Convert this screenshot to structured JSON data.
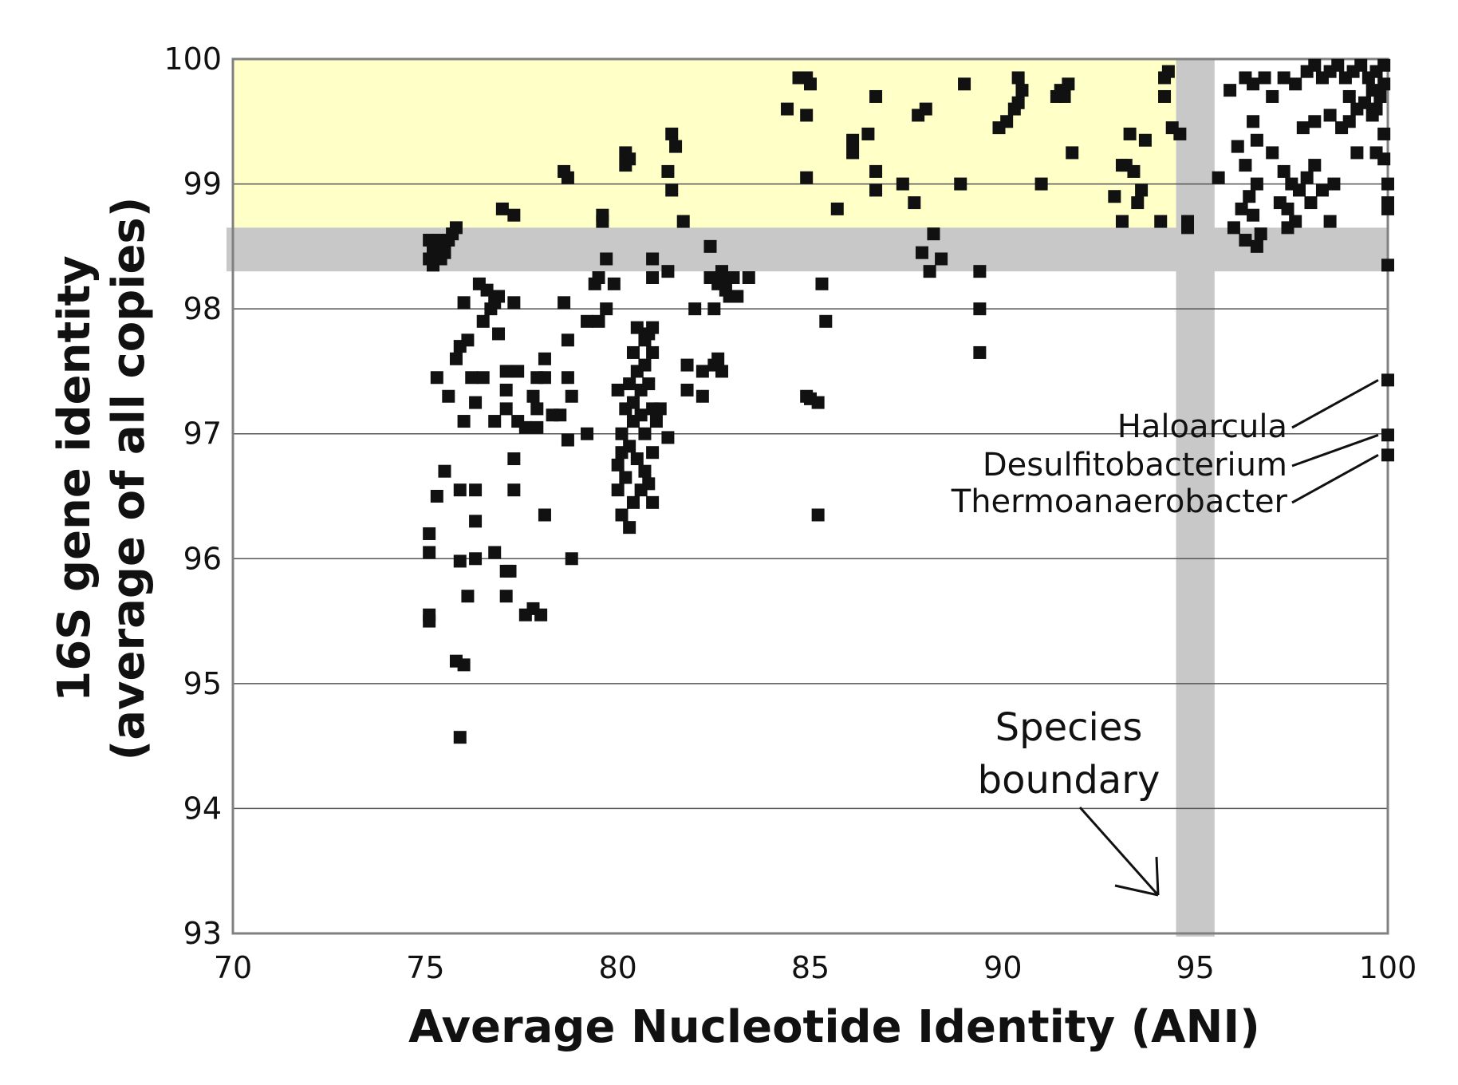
{
  "chart_data": {
    "type": "scatter",
    "xlabel": "Average Nucleotide Identity (ANI)",
    "ylabel": [
      "16S gene identity",
      "(average of all copies)"
    ],
    "xlim": [
      70,
      100
    ],
    "ylim": [
      93,
      100
    ],
    "xticks": [
      "70",
      "75",
      "80",
      "85",
      "90",
      "95",
      "100"
    ],
    "yticks": [
      "93",
      "94",
      "95",
      "96",
      "97",
      "98",
      "99",
      "100"
    ],
    "grid": "horizontal",
    "colors": {
      "marker": "#111111",
      "highlight_region": "#ffffc8",
      "boundary_band": "#c8c8c8"
    },
    "regions": [
      {
        "type": "highlight",
        "x": [
          70,
          94.5
        ],
        "y": [
          98.65,
          100
        ]
      },
      {
        "type": "boundary-band-horizontal",
        "y": [
          98.3,
          98.65
        ]
      },
      {
        "type": "boundary-band-vertical",
        "x": [
          94.5,
          95.5
        ]
      }
    ],
    "annotations": [
      {
        "text": "Haloarcula",
        "x": 100,
        "y": 97.43
      },
      {
        "text": "Desulfitobacterium",
        "x": 100,
        "y": 96.99
      },
      {
        "text": "Thermoanaerobacter",
        "x": 100,
        "y": 96.83
      }
    ],
    "species_boundary_label": [
      "Species",
      "boundary"
    ],
    "points": [
      [
        75.1,
        98.55
      ],
      [
        75.2,
        98.5
      ],
      [
        75.3,
        98.45
      ],
      [
        75.1,
        98.4
      ],
      [
        75.2,
        98.35
      ],
      [
        75.4,
        98.5
      ],
      [
        75.6,
        98.55
      ],
      [
        75.7,
        98.6
      ],
      [
        75.8,
        98.65
      ],
      [
        75.5,
        98.45
      ],
      [
        75.3,
        98.55
      ],
      [
        75.4,
        98.4
      ],
      [
        76.4,
        98.2
      ],
      [
        76.6,
        98.15
      ],
      [
        76.8,
        98.05
      ],
      [
        76.9,
        98.1
      ],
      [
        76.7,
        98.0
      ],
      [
        76.0,
        98.05
      ],
      [
        76.5,
        97.9
      ],
      [
        76.9,
        97.8
      ],
      [
        76.1,
        97.75
      ],
      [
        75.9,
        97.7
      ],
      [
        75.8,
        97.6
      ],
      [
        76.2,
        97.45
      ],
      [
        76.5,
        97.45
      ],
      [
        75.3,
        97.45
      ],
      [
        75.6,
        97.3
      ],
      [
        76.3,
        97.25
      ],
      [
        76.0,
        97.1
      ],
      [
        76.8,
        97.1
      ],
      [
        77.1,
        97.5
      ],
      [
        77.4,
        97.5
      ],
      [
        77.1,
        97.35
      ],
      [
        77.1,
        97.2
      ],
      [
        77.4,
        97.1
      ],
      [
        77.3,
        96.8
      ],
      [
        77.3,
        96.55
      ],
      [
        77.3,
        98.05
      ],
      [
        75.5,
        96.7
      ],
      [
        75.3,
        96.5
      ],
      [
        75.9,
        96.55
      ],
      [
        76.3,
        96.55
      ],
      [
        76.3,
        96.3
      ],
      [
        75.1,
        96.2
      ],
      [
        75.1,
        96.05
      ],
      [
        75.9,
        95.98
      ],
      [
        76.3,
        96.0
      ],
      [
        76.8,
        96.05
      ],
      [
        77.1,
        95.9
      ],
      [
        77.2,
        95.9
      ],
      [
        76.1,
        95.7
      ],
      [
        77.1,
        95.7
      ],
      [
        77.6,
        95.55
      ],
      [
        77.8,
        95.6
      ],
      [
        78.0,
        95.55
      ],
      [
        75.1,
        95.55
      ],
      [
        75.1,
        95.5
      ],
      [
        75.8,
        95.18
      ],
      [
        76.0,
        95.15
      ],
      [
        75.9,
        94.57
      ],
      [
        78.1,
        97.6
      ],
      [
        78.1,
        97.45
      ],
      [
        77.9,
        97.45
      ],
      [
        77.8,
        97.3
      ],
      [
        77.9,
        97.2
      ],
      [
        77.9,
        97.05
      ],
      [
        77.6,
        97.05
      ],
      [
        78.3,
        97.15
      ],
      [
        78.5,
        97.15
      ],
      [
        78.8,
        97.3
      ],
      [
        78.7,
        97.45
      ],
      [
        78.7,
        96.95
      ],
      [
        79.2,
        97.0
      ],
      [
        78.1,
        96.35
      ],
      [
        78.8,
        96.0
      ],
      [
        78.7,
        97.75
      ],
      [
        78.6,
        98.05
      ],
      [
        79.2,
        97.9
      ],
      [
        79.5,
        97.9
      ],
      [
        79.7,
        98.0
      ],
      [
        79.4,
        98.2
      ],
      [
        79.5,
        98.25
      ],
      [
        79.9,
        98.2
      ],
      [
        79.7,
        98.4
      ],
      [
        80.9,
        98.4
      ],
      [
        80.9,
        98.25
      ],
      [
        81.3,
        98.3
      ],
      [
        80.0,
        97.35
      ],
      [
        80.2,
        97.2
      ],
      [
        80.4,
        97.1
      ],
      [
        80.1,
        97.0
      ],
      [
        80.3,
        96.9
      ],
      [
        80.5,
        96.8
      ],
      [
        80.7,
        96.7
      ],
      [
        80.4,
        97.25
      ],
      [
        80.6,
        97.35
      ],
      [
        80.8,
        97.4
      ],
      [
        80.9,
        97.2
      ],
      [
        81.1,
        97.2
      ],
      [
        80.7,
        97.0
      ],
      [
        80.9,
        96.85
      ],
      [
        80.5,
        97.5
      ],
      [
        80.7,
        97.55
      ],
      [
        80.9,
        97.65
      ],
      [
        80.7,
        97.75
      ],
      [
        80.8,
        97.8
      ],
      [
        80.9,
        97.85
      ],
      [
        80.5,
        97.85
      ],
      [
        80.4,
        97.65
      ],
      [
        80.2,
        96.65
      ],
      [
        80.0,
        96.55
      ],
      [
        80.6,
        96.55
      ],
      [
        80.4,
        96.45
      ],
      [
        80.1,
        96.35
      ],
      [
        80.3,
        96.25
      ],
      [
        80.9,
        96.45
      ],
      [
        80.0,
        96.75
      ],
      [
        80.1,
        96.85
      ],
      [
        80.8,
        96.6
      ],
      [
        81.0,
        97.1
      ],
      [
        81.3,
        96.97
      ],
      [
        80.6,
        97.15
      ],
      [
        80.3,
        97.4
      ],
      [
        81.8,
        97.55
      ],
      [
        82.2,
        97.5
      ],
      [
        82.5,
        97.55
      ],
      [
        82.7,
        97.5
      ],
      [
        82.6,
        97.6
      ],
      [
        82.2,
        97.3
      ],
      [
        81.8,
        97.35
      ],
      [
        82.0,
        98.0
      ],
      [
        82.4,
        98.25
      ],
      [
        82.6,
        98.2
      ],
      [
        82.8,
        98.2
      ],
      [
        82.7,
        98.3
      ],
      [
        83.0,
        98.25
      ],
      [
        82.9,
        98.1
      ],
      [
        83.1,
        98.1
      ],
      [
        83.4,
        98.25
      ],
      [
        82.4,
        98.5
      ],
      [
        82.8,
        98.15
      ],
      [
        82.5,
        98.0
      ],
      [
        85.3,
        98.2
      ],
      [
        85.4,
        97.9
      ],
      [
        84.9,
        97.3
      ],
      [
        85.0,
        97.28
      ],
      [
        85.2,
        97.25
      ],
      [
        85.2,
        96.35
      ],
      [
        87.9,
        98.45
      ],
      [
        88.1,
        98.3
      ],
      [
        88.4,
        98.4
      ],
      [
        88.2,
        98.6
      ],
      [
        89.4,
        98.3
      ],
      [
        89.4,
        98.0
      ],
      [
        89.4,
        97.65
      ],
      [
        77.0,
        98.8
      ],
      [
        77.3,
        98.75
      ],
      [
        78.6,
        99.1
      ],
      [
        78.7,
        99.05
      ],
      [
        79.6,
        98.75
      ],
      [
        79.6,
        98.7
      ],
      [
        80.2,
        99.25
      ],
      [
        80.2,
        99.15
      ],
      [
        80.3,
        99.2
      ],
      [
        81.4,
        99.4
      ],
      [
        81.5,
        99.3
      ],
      [
        81.3,
        99.1
      ],
      [
        81.4,
        98.95
      ],
      [
        81.7,
        98.7
      ],
      [
        84.4,
        99.6
      ],
      [
        84.9,
        99.55
      ],
      [
        84.7,
        99.85
      ],
      [
        84.9,
        99.85
      ],
      [
        85.0,
        99.8
      ],
      [
        84.9,
        99.05
      ],
      [
        85.7,
        98.8
      ],
      [
        86.1,
        99.35
      ],
      [
        86.1,
        99.25
      ],
      [
        86.5,
        99.4
      ],
      [
        86.7,
        99.1
      ],
      [
        86.7,
        98.95
      ],
      [
        86.7,
        99.7
      ],
      [
        87.4,
        99.0
      ],
      [
        87.7,
        98.85
      ],
      [
        87.8,
        99.55
      ],
      [
        88.0,
        99.6
      ],
      [
        88.9,
        99.0
      ],
      [
        89.0,
        99.8
      ],
      [
        89.9,
        99.45
      ],
      [
        90.1,
        99.5
      ],
      [
        90.3,
        99.6
      ],
      [
        90.4,
        99.65
      ],
      [
        90.4,
        99.85
      ],
      [
        90.5,
        99.75
      ],
      [
        91.0,
        99.0
      ],
      [
        91.4,
        99.7
      ],
      [
        91.5,
        99.75
      ],
      [
        91.6,
        99.7
      ],
      [
        91.7,
        99.8
      ],
      [
        91.8,
        99.25
      ],
      [
        92.9,
        98.9
      ],
      [
        93.1,
        99.15
      ],
      [
        93.2,
        99.15
      ],
      [
        93.3,
        99.4
      ],
      [
        93.4,
        99.1
      ],
      [
        93.5,
        98.85
      ],
      [
        93.6,
        98.95
      ],
      [
        93.7,
        99.35
      ],
      [
        93.1,
        98.7
      ],
      [
        94.1,
        98.7
      ],
      [
        94.2,
        99.85
      ],
      [
        94.2,
        99.7
      ],
      [
        94.3,
        99.9
      ],
      [
        94.4,
        99.45
      ],
      [
        94.6,
        99.4
      ],
      [
        94.8,
        98.7
      ],
      [
        94.8,
        98.65
      ],
      [
        95.6,
        99.05
      ],
      [
        95.9,
        99.75
      ],
      [
        96.3,
        99.85
      ],
      [
        96.5,
        99.8
      ],
      [
        96.8,
        99.85
      ],
      [
        97.0,
        99.7
      ],
      [
        97.3,
        99.85
      ],
      [
        97.6,
        99.8
      ],
      [
        97.9,
        99.9
      ],
      [
        98.1,
        99.95
      ],
      [
        98.3,
        99.85
      ],
      [
        98.5,
        99.9
      ],
      [
        98.7,
        99.95
      ],
      [
        98.9,
        99.85
      ],
      [
        99.1,
        99.9
      ],
      [
        99.3,
        99.95
      ],
      [
        99.5,
        99.85
      ],
      [
        99.7,
        99.9
      ],
      [
        99.9,
        99.95
      ],
      [
        99.9,
        99.8
      ],
      [
        99.8,
        99.7
      ],
      [
        99.6,
        99.55
      ],
      [
        99.9,
        99.4
      ],
      [
        99.9,
        99.2
      ],
      [
        99.7,
        99.25
      ],
      [
        96.1,
        99.3
      ],
      [
        96.3,
        99.15
      ],
      [
        96.6,
        99.0
      ],
      [
        96.4,
        98.9
      ],
      [
        96.2,
        98.8
      ],
      [
        96.5,
        98.75
      ],
      [
        96.7,
        98.6
      ],
      [
        96.6,
        98.5
      ],
      [
        96.3,
        98.55
      ],
      [
        96.0,
        98.65
      ],
      [
        96.5,
        99.5
      ],
      [
        96.6,
        99.35
      ],
      [
        97.0,
        99.25
      ],
      [
        97.3,
        99.1
      ],
      [
        97.5,
        99.0
      ],
      [
        97.7,
        98.95
      ],
      [
        97.9,
        99.05
      ],
      [
        98.1,
        99.15
      ],
      [
        97.4,
        98.8
      ],
      [
        97.2,
        98.85
      ],
      [
        97.4,
        98.65
      ],
      [
        97.6,
        98.7
      ],
      [
        98.0,
        98.85
      ],
      [
        98.3,
        98.95
      ],
      [
        98.6,
        99.0
      ],
      [
        98.5,
        98.7
      ],
      [
        99.0,
        99.5
      ],
      [
        98.8,
        99.45
      ],
      [
        98.5,
        99.55
      ],
      [
        98.1,
        99.5
      ],
      [
        97.8,
        99.45
      ],
      [
        99.0,
        99.7
      ],
      [
        99.2,
        99.6
      ],
      [
        99.4,
        99.65
      ],
      [
        99.6,
        99.75
      ],
      [
        99.2,
        99.25
      ],
      [
        99.7,
        99.6
      ],
      [
        100,
        99.0
      ],
      [
        100,
        98.85
      ],
      [
        100,
        98.8
      ],
      [
        100,
        98.35
      ],
      [
        100,
        97.43
      ],
      [
        100,
        96.99
      ],
      [
        100,
        96.83
      ]
    ]
  }
}
